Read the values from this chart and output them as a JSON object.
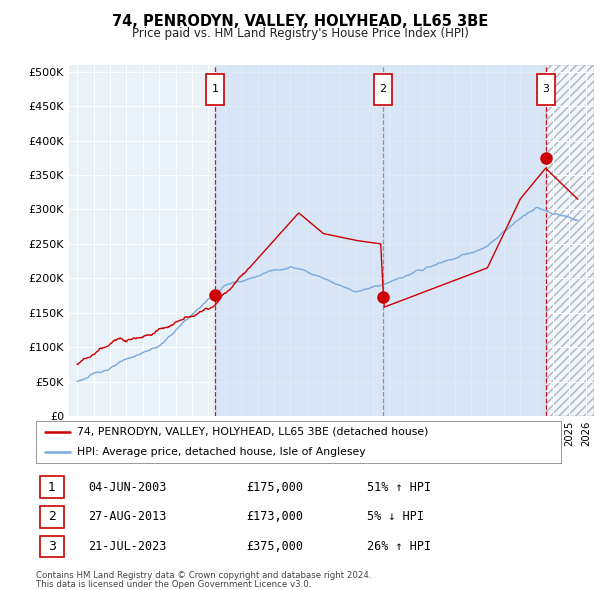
{
  "title": "74, PENRODYN, VALLEY, HOLYHEAD, LL65 3BE",
  "subtitle": "Price paid vs. HM Land Registry's House Price Index (HPI)",
  "red_label": "74, PENRODYN, VALLEY, HOLYHEAD, LL65 3BE (detached house)",
  "blue_label": "HPI: Average price, detached house, Isle of Anglesey",
  "footer1": "Contains HM Land Registry data © Crown copyright and database right 2024.",
  "footer2": "This data is licensed under the Open Government Licence v3.0.",
  "sales": [
    {
      "num": 1,
      "date": "04-JUN-2003",
      "price": 175000,
      "pct": "51%",
      "dir": "↑",
      "x": 2003.42
    },
    {
      "num": 2,
      "date": "27-AUG-2013",
      "price": 173000,
      "pct": "5%",
      "dir": "↓",
      "x": 2013.65
    },
    {
      "num": 3,
      "date": "21-JUL-2023",
      "price": 375000,
      "pct": "26%",
      "dir": "↑",
      "x": 2023.55
    }
  ],
  "ylim": [
    0,
    510000
  ],
  "xlim": [
    1994.5,
    2026.5
  ],
  "yticks": [
    0,
    50000,
    100000,
    150000,
    200000,
    250000,
    300000,
    350000,
    400000,
    450000,
    500000
  ],
  "ytick_labels": [
    "£0",
    "£50K",
    "£100K",
    "£150K",
    "£200K",
    "£250K",
    "£300K",
    "£350K",
    "£400K",
    "£450K",
    "£500K"
  ],
  "background_color": "#dce8f5",
  "plot_bg": "#e8f0f8",
  "hatch_bg": "#e0e8f0",
  "red_color": "#cc0000",
  "blue_color": "#7aaadd",
  "shade_color": "#ccdff5",
  "grid_color": "#ffffff"
}
